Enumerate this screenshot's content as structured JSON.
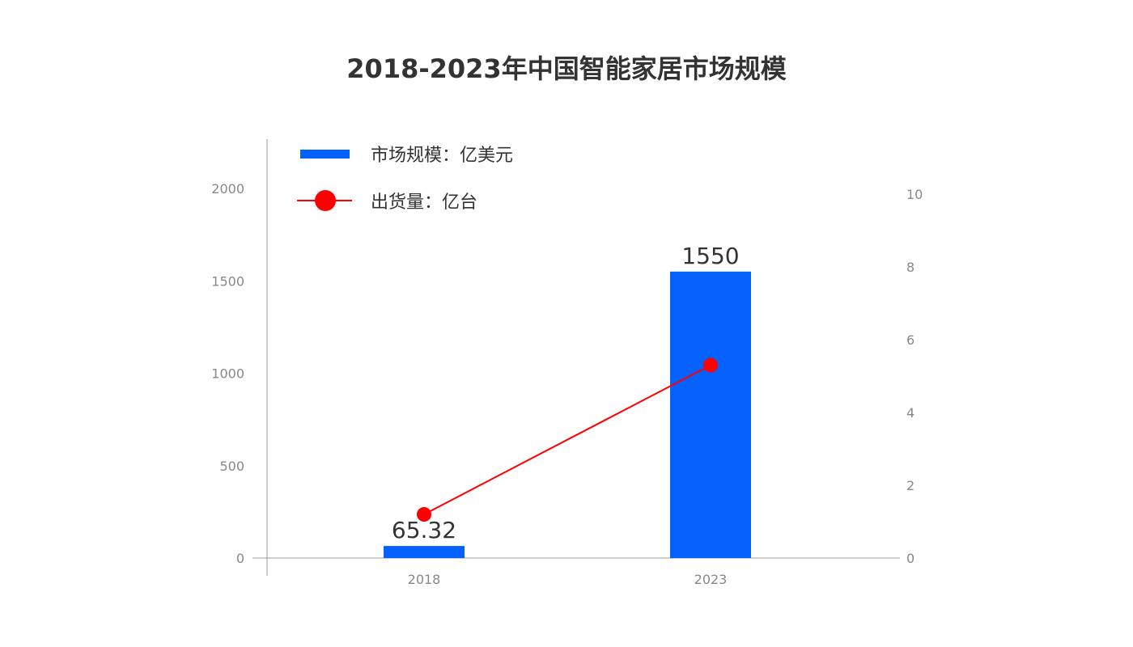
{
  "chart_data": {
    "type": "bar",
    "title": "2018-2023年中国智能家居市场规模",
    "categories": [
      "2018",
      "2023"
    ],
    "series": [
      {
        "name": "市场规模：亿美元",
        "type": "bar",
        "axis": "left",
        "color": "#0561FB",
        "values": [
          65.32,
          1550
        ],
        "data_labels": [
          "65.32",
          "1550"
        ]
      },
      {
        "name": "出货量：亿台",
        "type": "line",
        "axis": "right",
        "color": "#FF0000",
        "values": [
          1.2,
          5.3
        ]
      }
    ],
    "y_left": {
      "ylim": [
        0,
        2000
      ],
      "ticks": [
        0,
        500,
        1000,
        1500,
        2000
      ]
    },
    "y_right": {
      "ylim": [
        0,
        10
      ],
      "ticks": [
        0,
        2,
        4,
        6,
        8,
        10
      ]
    },
    "grid": false,
    "legend_position": "top-left"
  }
}
